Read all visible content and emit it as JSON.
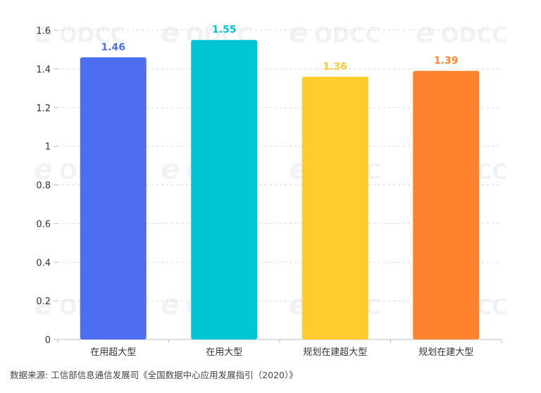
{
  "chart_data": {
    "type": "bar",
    "categories": [
      "在用超大型",
      "在用大型",
      "规划在建超大型",
      "规划在建大型"
    ],
    "values": [
      1.46,
      1.55,
      1.36,
      1.39
    ],
    "value_labels": [
      "1.46",
      "1.55",
      "1.36",
      "1.39"
    ],
    "bar_colors": [
      "#4E6EF2",
      "#00C5D5",
      "#FFCC2E",
      "#FF822E"
    ],
    "ylim": [
      0,
      1.6
    ],
    "yticks": [
      0,
      0.2,
      0.4,
      0.6,
      0.8,
      1,
      1.2,
      1.4,
      1.6
    ],
    "ytick_labels": [
      "0",
      "0.2",
      "0.4",
      "0.6",
      "0.8",
      "1",
      "1.2",
      "1.4",
      "1.6"
    ],
    "grid": true,
    "legend": "none",
    "watermark": "ODCC",
    "title": "",
    "xlabel": "",
    "ylabel": ""
  },
  "source_note": "数据来源: 工信部信息通信发展司《全国数据中心应用发展指引（2020）》"
}
